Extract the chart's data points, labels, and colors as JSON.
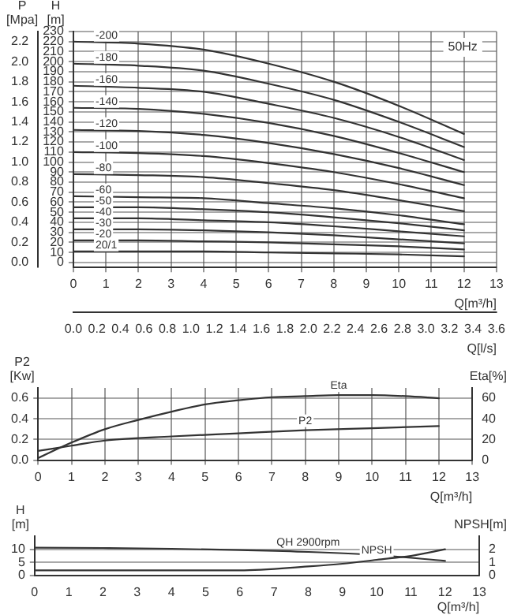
{
  "chart_data": [
    {
      "type": "line",
      "xlabel": "Q[m³/h]",
      "x2label": "Q[l/s]",
      "ylabel": "H [m]",
      "y2label": "P [Mpa]",
      "annotations": [
        "50Hz"
      ],
      "grid": true,
      "legend": false,
      "marker": "none",
      "line_style": "solid",
      "x": [
        0,
        2,
        4,
        6,
        8,
        10,
        12
      ],
      "xlim": [
        0,
        13
      ],
      "xticks": [
        0,
        1,
        2,
        3,
        4,
        5,
        6,
        7,
        8,
        9,
        10,
        11,
        12,
        13
      ],
      "x2lim": [
        0,
        3.6
      ],
      "x2ticks": [
        {
          "value": 0,
          "label": "0.0"
        },
        0.2,
        0.4,
        0.6,
        0.8,
        {
          "value": 1,
          "label": "1.0"
        },
        1.2,
        1.4,
        1.6,
        1.8,
        {
          "value": 2,
          "label": "2.0"
        },
        2.2,
        2.4,
        2.6,
        2.8,
        {
          "value": 3,
          "label": "3.0"
        },
        3.2,
        3.4,
        3.6
      ],
      "ylim": [
        -5,
        230
      ],
      "yticks": [
        0,
        10,
        20,
        30,
        40,
        50,
        60,
        70,
        80,
        90,
        100,
        110,
        120,
        130,
        140,
        150,
        160,
        170,
        180,
        190,
        200,
        210,
        220,
        230
      ],
      "y2lim": [
        -0.05,
        2.3
      ],
      "y2ticks": [
        {
          "value": 0,
          "label": "0.0"
        },
        0.2,
        0.4,
        0.6,
        0.8,
        {
          "value": 1,
          "label": "1.0"
        },
        1.2,
        1.4,
        1.6,
        1.8,
        {
          "value": 2,
          "label": "2.0"
        },
        2.2
      ],
      "series": [
        {
          "name": "-200",
          "color": "#333333",
          "values": [
            220,
            218,
            212,
            198,
            180,
            156,
            128
          ]
        },
        {
          "name": "-180",
          "color": "#333333",
          "values": [
            198,
            196,
            191,
            178,
            162,
            140,
            115
          ]
        },
        {
          "name": "-160",
          "color": "#333333",
          "values": [
            176,
            174,
            170,
            158,
            144,
            125,
            102
          ]
        },
        {
          "name": "-140",
          "color": "#333333",
          "values": [
            154,
            153,
            148,
            139,
            126,
            109,
            90
          ]
        },
        {
          "name": "-120",
          "color": "#333333",
          "values": [
            132,
            131,
            127,
            119,
            108,
            94,
            77
          ]
        },
        {
          "name": "-100",
          "color": "#333333",
          "values": [
            110,
            109,
            106,
            99,
            90,
            78,
            64
          ]
        },
        {
          "name": "-80",
          "color": "#333333",
          "values": [
            88,
            87,
            85,
            79,
            72,
            62,
            51
          ]
        },
        {
          "name": "-60",
          "color": "#333333",
          "values": [
            66,
            65,
            64,
            59,
            54,
            47,
            38
          ]
        },
        {
          "name": "-50",
          "color": "#333333",
          "values": [
            55,
            55,
            53,
            50,
            45,
            39,
            32
          ]
        },
        {
          "name": "-40",
          "color": "#333333",
          "values": [
            44,
            44,
            42,
            40,
            36,
            31,
            26
          ]
        },
        {
          "name": "-30",
          "color": "#333333",
          "values": [
            33,
            33,
            32,
            30,
            27,
            23,
            19
          ]
        },
        {
          "name": "-20",
          "color": "#333333",
          "values": [
            22,
            22,
            21,
            20,
            18,
            16,
            13
          ]
        },
        {
          "name": "20/1",
          "color": "#333333",
          "values": [
            11,
            11,
            11,
            10,
            9,
            8,
            6
          ]
        }
      ]
    },
    {
      "type": "line",
      "xlabel": "Q[m³/h]",
      "ylabel": "P2 [Kw]",
      "y2label": "Eta[%]",
      "grid": true,
      "legend": false,
      "marker": "none",
      "line_style": "solid",
      "xlim": [
        0,
        13
      ],
      "xticks": [
        0,
        1,
        2,
        3,
        4,
        5,
        6,
        7,
        8,
        9,
        10,
        11,
        12,
        13
      ],
      "ylim": [
        0,
        0.7
      ],
      "yticks": [
        {
          "value": 0,
          "label": "0.0"
        },
        0.2,
        0.4,
        0.6
      ],
      "y2lim": [
        0,
        70
      ],
      "y2ticks": [
        0,
        20,
        40,
        60
      ],
      "series": [
        {
          "name": "Eta",
          "color": "#333333",
          "axis": "y2",
          "x": [
            0,
            1,
            2,
            3,
            4,
            5,
            6,
            7,
            8,
            9,
            10,
            11,
            12
          ],
          "values": [
            2,
            17,
            30,
            39,
            47,
            54,
            58,
            61,
            62,
            63,
            63,
            62,
            60
          ]
        },
        {
          "name": "P2",
          "color": "#333333",
          "x": [
            0,
            1,
            2,
            4,
            6,
            8,
            10,
            12
          ],
          "values": [
            0.09,
            0.14,
            0.19,
            0.23,
            0.26,
            0.29,
            0.31,
            0.33
          ]
        }
      ]
    },
    {
      "type": "line",
      "xlabel": "Q[m³/h]",
      "ylabel": "H [m]",
      "y2label": "NPSH[m]",
      "grid": "y",
      "legend": false,
      "marker": "none",
      "line_style": "solid",
      "xlim": [
        0,
        13
      ],
      "xticks": [
        0,
        1,
        2,
        3,
        4,
        5,
        6,
        7,
        8,
        9,
        10,
        11,
        12,
        13
      ],
      "ylim": [
        0,
        15
      ],
      "yticks": [
        0,
        5,
        10
      ],
      "y2lim": [
        0,
        3
      ],
      "y2ticks": [
        0,
        1,
        2
      ],
      "series": [
        {
          "name": "QH 2900rpm",
          "color": "#333333",
          "x": [
            0,
            2,
            4,
            6,
            8,
            10,
            12
          ],
          "values": [
            10.6,
            10.5,
            10.2,
            9.7,
            9,
            7.8,
            5.6
          ]
        },
        {
          "name": "NPSH",
          "color": "#333333",
          "axis": "y2",
          "x": [
            0,
            2,
            4,
            6,
            8,
            9,
            10,
            11,
            12
          ],
          "values": [
            0.4,
            0.4,
            0.4,
            0.4,
            0.7,
            0.9,
            1.2,
            1.5,
            2
          ]
        }
      ]
    }
  ]
}
